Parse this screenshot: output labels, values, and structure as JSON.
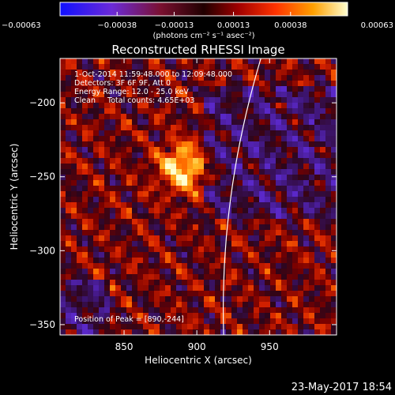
{
  "chart_data": {
    "type": "heatmap",
    "title": "Reconstructed RHESSI Image",
    "xlabel": "Heliocentric X (arcsec)",
    "ylabel": "Heliocentric Y (arcsec)",
    "xlim": [
      806,
      996
    ],
    "ylim": [
      -357,
      -170
    ],
    "x_ticks": [
      850,
      900,
      950
    ],
    "x_tick_labels": [
      "850",
      "900",
      "950"
    ],
    "y_ticks": [
      -200,
      -250,
      -300,
      -350
    ],
    "y_tick_labels": [
      "−200",
      "−250",
      "−300",
      "−350"
    ],
    "colorbar": {
      "ticks": [
        -0.00063,
        -0.00038,
        -0.00013,
        0.00013,
        0.00038,
        0.00063
      ],
      "tick_labels": [
        "−0.00063",
        "−0.00038",
        "−0.00013",
        "0.00013",
        "0.00038",
        "0.00063"
      ],
      "unit_label": "(photons cm⁻² s⁻¹ asec⁻²)",
      "range": [
        -0.00063,
        0.00063
      ]
    },
    "annotations": [
      "1-Oct-2014 11:59:48.000 to 12:09:48.000",
      "Detectors: 3F 6F 9F, Att 0",
      "Energy Range: 12.0 - 25.0 keV",
      "Clean     Total counts: 4.65E+03"
    ],
    "peak_label": "Position of Peak = [890,-244]",
    "peak": [
      890,
      -244
    ],
    "grid": false
  },
  "footer": {
    "date": "23-May-2017 18:54"
  }
}
